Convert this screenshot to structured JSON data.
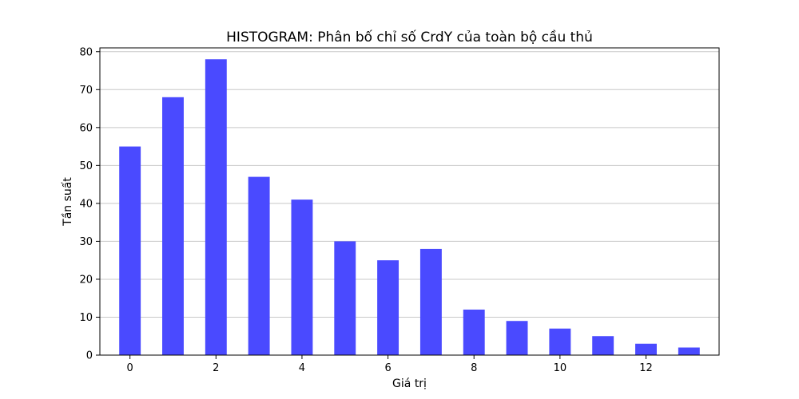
{
  "chart_data": {
    "type": "bar",
    "title": "HISTOGRAM: Phân bố chỉ số CrdY của toàn bộ cầu thủ",
    "xlabel": "Giá trị",
    "ylabel": "Tần suất",
    "x": [
      0,
      1,
      2,
      3,
      4,
      5,
      6,
      7,
      8,
      9,
      10,
      11,
      12,
      13
    ],
    "values": [
      55,
      68,
      78,
      47,
      41,
      30,
      25,
      28,
      12,
      9,
      7,
      5,
      3,
      2
    ],
    "xlim": [
      -0.7,
      13.7
    ],
    "ylim": [
      0,
      81
    ],
    "xticks": [
      "0",
      "2",
      "4",
      "6",
      "8",
      "10",
      "12"
    ],
    "yticks": [
      "0",
      "10",
      "20",
      "30",
      "40",
      "50",
      "60",
      "70",
      "80"
    ],
    "grid": "horizontal",
    "bar_color": "#4a4aff"
  }
}
